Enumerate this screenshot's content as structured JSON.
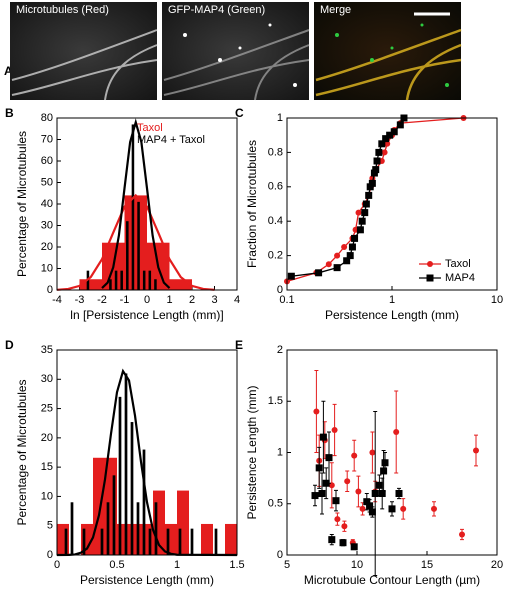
{
  "panel_a": {
    "panel": "A",
    "images": [
      {
        "label": "Microtubules (Red)"
      },
      {
        "label": "GFP-MAP4 (Green)"
      },
      {
        "label": "Merge"
      }
    ]
  },
  "chart_data": [
    {
      "panel": "B",
      "type": "histogram",
      "y_label": "Percentage of Microtubules",
      "x_label": "ln [Persistence Length (mm)]",
      "xlim": [
        -4,
        4
      ],
      "xticks": [
        -4,
        -3,
        -2,
        -1,
        0,
        1,
        2,
        3,
        4
      ],
      "ylim": [
        0,
        80
      ],
      "yticks": [
        0,
        10,
        20,
        30,
        40,
        50,
        60,
        70,
        80
      ],
      "legend": "upper right",
      "series": [
        {
          "name": "Taxol",
          "color": "#e41e1e",
          "bins": [
            -3,
            -2,
            -1,
            0,
            1,
            2
          ],
          "values": [
            5,
            22,
            44,
            22,
            5
          ],
          "fit": {
            "x": [
              -4,
              -3.5,
              -3,
              -2.5,
              -2,
              -1.5,
              -1,
              -0.5,
              0,
              0.5,
              1,
              1.5,
              2,
              2.5,
              3
            ],
            "y": [
              0.1,
              0.5,
              1.9,
              6.0,
              14.3,
              26.7,
              38.8,
              44,
              38.8,
              26.7,
              14.3,
              6.0,
              1.9,
              0.5,
              0.1
            ]
          }
        },
        {
          "name": "MAP4 + Taxol",
          "color": "#000000",
          "bins": [
            -2.75,
            -2.5,
            -2.25,
            -2,
            -1.75,
            -1.5,
            -1.25,
            -1,
            -0.75,
            -0.5,
            -0.25,
            0,
            0.25,
            0.5,
            0.75
          ],
          "values": [
            9,
            0,
            0,
            0,
            5,
            9,
            9,
            32,
            77,
            41,
            9,
            9,
            5,
            0
          ],
          "fit": {
            "x": [
              -2,
              -1.75,
              -1.5,
              -1.25,
              -1,
              -0.75,
              -0.5,
              -0.25,
              0,
              0.25,
              0.5,
              0.75,
              1
            ],
            "y": [
              0.9,
              3.4,
              10.6,
              25.3,
              47.3,
              68.8,
              78,
              68.8,
              47.3,
              25.3,
              10.6,
              3.4,
              0.9
            ]
          }
        }
      ]
    },
    {
      "panel": "C",
      "type": "line",
      "y_label": "Fraction of Microtubules",
      "x_label": "Persistence Length (mm)",
      "xlog": true,
      "xlim": [
        0.1,
        10
      ],
      "xticks": [
        0.1,
        1,
        10
      ],
      "ylim": [
        0,
        1
      ],
      "yticks": [
        0,
        0.2,
        0.4,
        0.6,
        0.8,
        1
      ],
      "legend": "lower right",
      "series": [
        {
          "name": "Taxol",
          "color": "#e41e1e",
          "marker": "circle",
          "x": [
            0.1,
            0.19,
            0.25,
            0.3,
            0.35,
            0.42,
            0.45,
            0.48,
            0.55,
            0.6,
            0.63,
            0.65,
            0.7,
            0.8,
            0.85,
            0.9,
            1.0,
            1.05,
            1.2,
            4.8
          ],
          "y": [
            0.05,
            0.1,
            0.15,
            0.2,
            0.25,
            0.3,
            0.35,
            0.45,
            0.5,
            0.55,
            0.6,
            0.65,
            0.7,
            0.75,
            0.8,
            0.85,
            0.9,
            0.93,
            0.97,
            1
          ]
        },
        {
          "name": "MAP4",
          "color": "#000000",
          "marker": "square",
          "x": [
            0.11,
            0.2,
            0.3,
            0.37,
            0.4,
            0.42,
            0.44,
            0.5,
            0.52,
            0.55,
            0.57,
            0.6,
            0.62,
            0.65,
            0.68,
            0.7,
            0.72,
            0.75,
            0.8,
            0.87,
            0.95,
            1.05,
            1.2,
            1.3
          ],
          "y": [
            0.08,
            0.1,
            0.13,
            0.17,
            0.2,
            0.25,
            0.3,
            0.35,
            0.4,
            0.45,
            0.5,
            0.55,
            0.6,
            0.62,
            0.68,
            0.7,
            0.75,
            0.8,
            0.85,
            0.88,
            0.9,
            0.92,
            0.96,
            1
          ]
        }
      ]
    },
    {
      "panel": "D",
      "type": "histogram",
      "y_label": "Percentage of Microtubules",
      "x_label": "Persistence Length (mm)",
      "xlim": [
        0,
        1.5
      ],
      "xticks": [
        0,
        0.5,
        1,
        1.5
      ],
      "ylim": [
        0,
        35
      ],
      "yticks": [
        0,
        5,
        10,
        15,
        20,
        25,
        30,
        35
      ],
      "series": [
        {
          "color": "#e41e1e",
          "bins": [
            0,
            0.1,
            0.2,
            0.3,
            0.4,
            0.5,
            0.6,
            0.7,
            0.8,
            0.9,
            1.0,
            1.1,
            1.2,
            1.3,
            1.4,
            1.5
          ],
          "values": [
            5.3,
            0,
            5.3,
            16.6,
            16.6,
            5.3,
            5.3,
            5.3,
            11,
            5.3,
            11,
            0,
            5.3,
            0,
            5.3
          ]
        },
        {
          "color": "#000000",
          "bins": [
            0,
            0.05,
            0.1,
            0.15,
            0.2,
            0.25,
            0.3,
            0.35,
            0.4,
            0.45,
            0.5,
            0.55,
            0.6,
            0.65,
            0.7,
            0.75,
            0.8,
            0.85,
            0.9,
            0.95,
            1.0,
            1.05,
            1.1,
            1.15,
            1.2,
            1.25,
            1.3,
            1.35,
            1.4,
            1.45,
            1.5
          ],
          "values": [
            0,
            4.5,
            9,
            0,
            4.5,
            0,
            0,
            4.5,
            9,
            13.6,
            27,
            31,
            22.7,
            9,
            18,
            4.5,
            9,
            0,
            4.5,
            0,
            4.5,
            0,
            4.5,
            0,
            0,
            0,
            4.5,
            0,
            0,
            0
          ],
          "fit": {
            "x": [
              0,
              0.1,
              0.15,
              0.2,
              0.25,
              0.3,
              0.35,
              0.4,
              0.45,
              0.5,
              0.55,
              0.6,
              0.65,
              0.7,
              0.75,
              0.8,
              0.85,
              0.9,
              0.95,
              1.0,
              1.5
            ],
            "y": [
              0,
              0.02,
              0.1,
              0.4,
              1.1,
              3.0,
              6.8,
              12.9,
              20.7,
              27.8,
              31.4,
              29.8,
              23.8,
              15.9,
              9.0,
              4.3,
              1.7,
              0.6,
              0.2,
              0.04,
              0
            ]
          }
        }
      ]
    },
    {
      "panel": "E",
      "type": "scatter",
      "y_label": "Persistence Length (mm)",
      "x_label": "Microtubule Contour Length (µm)",
      "xlim": [
        5,
        20
      ],
      "xticks": [
        5,
        10,
        15,
        20
      ],
      "ylim": [
        0,
        2
      ],
      "yticks": [
        0,
        0.5,
        1,
        1.5,
        2
      ],
      "series": [
        {
          "color": "#e41e1e",
          "marker": "circle",
          "x": [
            7.1,
            7.3,
            7.7,
            8.4,
            8.2,
            8.6,
            9.1,
            9.3,
            9.8,
            9.7,
            10.1,
            10.4,
            11.1,
            11.3,
            12.8,
            13.3,
            15.5,
            17.5,
            18.5
          ],
          "y": [
            1.4,
            0.92,
            1.12,
            1.22,
            0.68,
            0.35,
            0.28,
            0.72,
            0.97,
            0.12,
            0.62,
            0.45,
            1.0,
            0.62,
            1.2,
            0.45,
            0.45,
            0.2,
            1.02
          ],
          "yerr": [
            0.4,
            0.25,
            0.18,
            0.25,
            0.22,
            0.06,
            0.05,
            0.1,
            0.15,
            0.03,
            0.15,
            0.06,
            0.2,
            0.1,
            0.4,
            0.1,
            0.07,
            0.05,
            0.15
          ]
        },
        {
          "color": "#000000",
          "marker": "square",
          "x": [
            7.0,
            7.3,
            7.5,
            7.6,
            7.8,
            8.0,
            8.2,
            8.5,
            9.0,
            9.8,
            10.7,
            10.9,
            11.1,
            11.3,
            11.6,
            11.8,
            11.9,
            12.0,
            12.5,
            13.0
          ],
          "y": [
            0.58,
            0.85,
            0.6,
            1.15,
            0.7,
            0.95,
            0.15,
            0.53,
            0.12,
            0.08,
            0.52,
            0.48,
            0.42,
            0.6,
            0.68,
            0.6,
            0.82,
            0.9,
            0.45,
            0.6
          ],
          "yerr": [
            0.1,
            0.2,
            0.2,
            0.35,
            0.15,
            0.25,
            0.05,
            0.1,
            0.03,
            0.02,
            0.08,
            0.06,
            0.05,
            0.8,
            0.1,
            0.15,
            0.2,
            0.1,
            0.07,
            0.05
          ]
        }
      ]
    }
  ]
}
